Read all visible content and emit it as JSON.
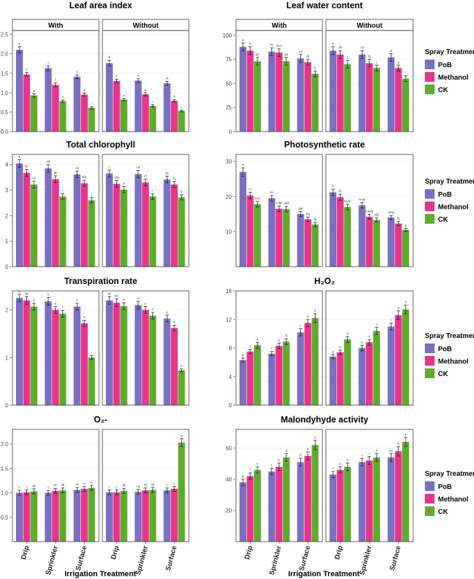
{
  "chart_data": [
    {
      "type": "bar",
      "title": "Leaf area index",
      "facets": [
        "With",
        "Without"
      ],
      "categories": [
        "Drip",
        "Sprinkler",
        "Surface"
      ],
      "ylim": [
        0,
        2.6
      ],
      "yticks": [
        0,
        0.5,
        1,
        1.5,
        2,
        2.5
      ],
      "ytick_labels": [
        "0.0",
        "0.5",
        "1.0",
        "1.5",
        "2.0",
        "2.5"
      ],
      "series": [
        {
          "name": "PoB",
          "values": [
            [
              2.1,
              1.63,
              1.41
            ],
            [
              1.76,
              1.31,
              1.24
            ]
          ],
          "errors": [
            [
              0.08,
              0.06,
              0.05
            ],
            [
              0.07,
              0.05,
              0.05
            ]
          ],
          "letters": [
            [
              "a",
              "c",
              "d"
            ],
            [
              "b",
              "e",
              "ef"
            ]
          ]
        },
        {
          "name": "Methanol",
          "values": [
            [
              1.47,
              1.2,
              0.95
            ],
            [
              1.3,
              0.96,
              0.79
            ]
          ],
          "errors": [
            [
              0.05,
              0.05,
              0.04
            ],
            [
              0.05,
              0.04,
              0.03
            ]
          ],
          "letters": [
            [
              "e",
              "f",
              "g"
            ],
            [
              "e",
              "g",
              "h"
            ]
          ]
        },
        {
          "name": "CK",
          "values": [
            [
              0.93,
              0.78,
              0.61
            ],
            [
              0.82,
              0.66,
              0.53
            ]
          ],
          "errors": [
            [
              0.04,
              0.03,
              0.03
            ],
            [
              0.03,
              0.03,
              0.02
            ]
          ],
          "letters": [
            [
              "g",
              "h",
              "i"
            ],
            [
              "h",
              "i",
              "j"
            ]
          ]
        }
      ]
    },
    {
      "type": "bar",
      "title": "Leaf water content",
      "facets": [
        "With",
        "Without"
      ],
      "categories": [
        "Drip",
        "Sprinkler",
        "Surface"
      ],
      "ylim": [
        0,
        105
      ],
      "yticks": [
        0,
        25,
        50,
        75,
        100
      ],
      "ytick_labels": [
        "0",
        "25",
        "50",
        "75",
        "100"
      ],
      "series": [
        {
          "name": "PoB",
          "values": [
            [
              88,
              83,
              76
            ],
            [
              84,
              80,
              77
            ]
          ],
          "errors": [
            [
              4,
              4,
              4
            ],
            [
              4,
              4,
              4
            ]
          ],
          "letters": [
            [
              "a",
              "bc",
              "cd"
            ],
            [
              "b",
              "cd",
              "d"
            ]
          ]
        },
        {
          "name": "Methanol",
          "values": [
            [
              84,
              82,
              72
            ],
            [
              80,
              71,
              66
            ]
          ],
          "errors": [
            [
              4,
              4,
              3
            ],
            [
              4,
              4,
              3
            ]
          ],
          "letters": [
            [
              "b",
              "bcd",
              "de"
            ],
            [
              "de",
              "fg",
              "g"
            ]
          ]
        },
        {
          "name": "CK",
          "values": [
            [
              73,
              73,
              60
            ],
            [
              70,
              66,
              55
            ]
          ],
          "errors": [
            [
              4,
              4,
              3
            ],
            [
              4,
              3,
              3
            ]
          ],
          "letters": [
            [
              "gh",
              "gh",
              "k"
            ],
            [
              "ij",
              "j",
              "l"
            ]
          ]
        }
      ]
    },
    {
      "type": "bar",
      "title": "Total chlorophyll",
      "facets": [
        "With",
        "Without"
      ],
      "categories": [
        "Drip",
        "Sprinkler",
        "Surface"
      ],
      "ylim": [
        0,
        4.4
      ],
      "yticks": [
        0,
        1,
        2,
        3,
        4
      ],
      "ytick_labels": [
        "0",
        "1",
        "2",
        "3",
        "4"
      ],
      "series": [
        {
          "name": "PoB",
          "values": [
            [
              4.05,
              3.85,
              3.62
            ],
            [
              3.65,
              3.63,
              3.42
            ]
          ],
          "errors": [
            [
              0.15,
              0.15,
              0.13
            ],
            [
              0.14,
              0.14,
              0.13
            ]
          ],
          "letters": [
            [
              "a",
              "ab",
              "cd"
            ],
            [
              "c",
              "cd",
              "de"
            ]
          ]
        },
        {
          "name": "Methanol",
          "values": [
            [
              3.68,
              3.43,
              3.27
            ],
            [
              3.25,
              3.3,
              3.22
            ]
          ],
          "errors": [
            [
              0.14,
              0.13,
              0.12
            ],
            [
              0.13,
              0.13,
              0.12
            ]
          ],
          "letters": [
            [
              "bc",
              "de",
              "efg"
            ],
            [
              "efg",
              "ef",
              "fg"
            ]
          ]
        },
        {
          "name": "CK",
          "values": [
            [
              3.22,
              2.75,
              2.6
            ],
            [
              3.02,
              2.75,
              2.72
            ]
          ],
          "errors": [
            [
              0.13,
              0.11,
              0.1
            ],
            [
              0.12,
              0.11,
              0.1
            ]
          ],
          "letters": [
            [
              "cd",
              "i",
              "j"
            ],
            [
              "h",
              "i",
              "ij"
            ]
          ]
        }
      ]
    },
    {
      "type": "bar",
      "title": "Photosynthetic rate",
      "facets": [
        "With",
        "Without"
      ],
      "categories": [
        "Drip",
        "Sprinkler",
        "Surface"
      ],
      "ylim": [
        0,
        32
      ],
      "yticks": [
        10,
        20,
        30
      ],
      "ytick_labels": [
        "10",
        "20",
        "30"
      ],
      "series": [
        {
          "name": "PoB",
          "values": [
            [
              27,
              19.5,
              15
            ],
            [
              21.2,
              17.5,
              14
            ]
          ],
          "errors": [
            [
              1.2,
              0.8,
              0.7
            ],
            [
              0.9,
              0.8,
              0.6
            ]
          ],
          "letters": [
            [
              "a",
              "bc",
              "def"
            ],
            [
              "b",
              "bcde",
              "defg"
            ]
          ]
        },
        {
          "name": "Methanol",
          "values": [
            [
              20.3,
              16.5,
              13.5
            ],
            [
              19.8,
              14.2,
              12.3
            ]
          ],
          "errors": [
            [
              0.9,
              0.8,
              0.6
            ],
            [
              0.9,
              0.7,
              0.6
            ]
          ],
          "letters": [
            [
              "cc",
              "cdef",
              "efg"
            ],
            [
              "bc",
              "cdefg",
              "fg"
            ]
          ]
        },
        {
          "name": "CK",
          "values": [
            [
              17.8,
              16.4,
              12
            ],
            [
              17,
              13.3,
              10.5
            ]
          ],
          "errors": [
            [
              0.8,
              0.8,
              0.6
            ],
            [
              0.8,
              0.6,
              0.5
            ]
          ],
          "letters": [
            [
              "bcd",
              "cdef",
              "fg"
            ],
            [
              "bcde",
              "efg",
              "g"
            ]
          ]
        }
      ]
    },
    {
      "type": "bar",
      "title": "Transpiration rate",
      "facets": [
        "With",
        "Without"
      ],
      "categories": [
        "Drip",
        "Sprinkler",
        "Surface"
      ],
      "ylim": [
        0,
        2.4
      ],
      "yticks": [
        0,
        1,
        2
      ],
      "ytick_labels": [
        "0",
        "1",
        "2"
      ],
      "series": [
        {
          "name": "PoB",
          "values": [
            [
              2.25,
              2.18,
              2.07
            ],
            [
              2.2,
              2.1,
              1.82
            ]
          ],
          "errors": [
            [
              0.08,
              0.08,
              0.07
            ],
            [
              0.08,
              0.08,
              0.07
            ]
          ],
          "letters": [
            [
              "a",
              "b",
              "e"
            ],
            [
              "ab",
              "cc",
              "g"
            ]
          ]
        },
        {
          "name": "Methanol",
          "values": [
            [
              2.2,
              2.0,
              1.72
            ],
            [
              2.15,
              2.0,
              1.62
            ]
          ],
          "errors": [
            [
              0.08,
              0.07,
              0.06
            ],
            [
              0.08,
              0.07,
              0.06
            ]
          ],
          "letters": [
            [
              "ab",
              "e",
              "h"
            ],
            [
              "bc",
              "e",
              "h"
            ]
          ]
        },
        {
          "name": "CK",
          "values": [
            [
              2.07,
              1.92,
              1.0
            ],
            [
              2.08,
              1.88,
              0.73
            ]
          ],
          "errors": [
            [
              0.07,
              0.07,
              0.04
            ],
            [
              0.07,
              0.07,
              0.03
            ]
          ],
          "letters": [
            [
              "e",
              "f",
              "i"
            ],
            [
              "e",
              "f",
              "k"
            ]
          ]
        }
      ]
    },
    {
      "type": "bar",
      "title": "H₂O₂",
      "facets": [
        "With",
        "Without"
      ],
      "categories": [
        "Drip",
        "Sprinkler",
        "Surface"
      ],
      "ylim": [
        0,
        16
      ],
      "yticks": [
        0,
        4,
        8,
        12,
        16
      ],
      "ytick_labels": [
        "0",
        "4",
        "8",
        "12",
        "16"
      ],
      "series": [
        {
          "name": "PoB",
          "values": [
            [
              6.3,
              7.2,
              10.2
            ],
            [
              6.8,
              8.0,
              11.0
            ]
          ],
          "errors": [
            [
              0.3,
              0.3,
              0.5
            ],
            [
              0.3,
              0.4,
              0.5
            ]
          ],
          "letters": [
            [
              "g",
              "f",
              "c"
            ],
            [
              "g",
              "e",
              "c"
            ]
          ]
        },
        {
          "name": "Methanol",
          "values": [
            [
              7.5,
              8.3,
              11.5
            ],
            [
              7.4,
              8.8,
              12.6
            ]
          ],
          "errors": [
            [
              0.3,
              0.4,
              0.5
            ],
            [
              0.3,
              0.4,
              0.6
            ]
          ],
          "letters": [
            [
              "e",
              "e",
              "b"
            ],
            [
              "e",
              "e",
              "a"
            ]
          ]
        },
        {
          "name": "CK",
          "values": [
            [
              8.4,
              8.9,
              12.2
            ],
            [
              9.2,
              10.4,
              13.4
            ]
          ],
          "errors": [
            [
              0.4,
              0.4,
              0.6
            ],
            [
              0.4,
              0.5,
              0.6
            ]
          ],
          "letters": [
            [
              "d",
              "d",
              "b"
            ],
            [
              "d",
              "c",
              "a"
            ]
          ]
        }
      ]
    },
    {
      "type": "bar",
      "title": "O₂-",
      "facets": [
        "With",
        "Without"
      ],
      "categories": [
        "Drip",
        "Sprinkler",
        "Surface"
      ],
      "ylim": [
        0,
        2.3
      ],
      "yticks": [
        0.5,
        1,
        1.5,
        2
      ],
      "ytick_labels": [
        "0.5",
        "1.0",
        "1.5",
        "2.0"
      ],
      "series": [
        {
          "name": "PoB",
          "values": [
            [
              1.0,
              1.0,
              1.06
            ],
            [
              1.01,
              1.02,
              1.05
            ]
          ],
          "errors": [
            [
              0.05,
              0.05,
              0.05
            ],
            [
              0.05,
              0.05,
              0.05
            ]
          ],
          "letters": [
            [
              "c",
              "c",
              "ef"
            ],
            [
              "c",
              "cg",
              "c"
            ]
          ]
        },
        {
          "name": "Methanol",
          "values": [
            [
              1.01,
              1.04,
              1.08
            ],
            [
              1.01,
              1.05,
              1.08
            ]
          ],
          "errors": [
            [
              0.05,
              0.05,
              0.05
            ],
            [
              0.05,
              0.05,
              0.05
            ]
          ],
          "letters": [
            [
              "c",
              "bc",
              "cc"
            ],
            [
              "c",
              "ef",
              "c"
            ]
          ]
        },
        {
          "name": "CK",
          "values": [
            [
              1.03,
              1.05,
              1.1
            ],
            [
              1.04,
              1.06,
              2.03
            ]
          ],
          "errors": [
            [
              0.05,
              0.05,
              0.05
            ],
            [
              0.05,
              0.05,
              0.08
            ]
          ],
          "letters": [
            [
              "ab",
              "ab",
              "b"
            ],
            [
              "ab",
              "ab",
              "a"
            ]
          ]
        }
      ]
    },
    {
      "type": "bar",
      "title": "Malondyhyde activity",
      "facets": [
        "With",
        "Without"
      ],
      "categories": [
        "Drip",
        "Sprinkler",
        "Surface"
      ],
      "ylim": [
        0,
        72
      ],
      "yticks": [
        20,
        40,
        60
      ],
      "ytick_labels": [
        "20",
        "40",
        "60"
      ],
      "series": [
        {
          "name": "PoB",
          "values": [
            [
              38,
              45,
              51
            ],
            [
              43,
              51,
              54
            ]
          ],
          "errors": [
            [
              2,
              2,
              2.5
            ],
            [
              2,
              2.5,
              2.5
            ]
          ],
          "letters": [
            [
              "g",
              "f",
              "b"
            ],
            [
              "f",
              "c",
              "bc"
            ]
          ]
        },
        {
          "name": "Methanol",
          "values": [
            [
              42,
              48,
              55
            ],
            [
              46,
              52,
              58
            ]
          ],
          "errors": [
            [
              2,
              2.5,
              2.5
            ],
            [
              2,
              2.5,
              3
            ]
          ],
          "letters": [
            [
              "f",
              "e",
              "b"
            ],
            [
              "e",
              "c",
              "b"
            ]
          ]
        },
        {
          "name": "CK",
          "values": [
            [
              46,
              54,
              62
            ],
            [
              48,
              54,
              64
            ]
          ],
          "errors": [
            [
              2,
              2.5,
              3
            ],
            [
              2.5,
              2.5,
              3
            ]
          ],
          "letters": [
            [
              "e",
              "d",
              "a"
            ],
            [
              "d",
              "d",
              "a"
            ]
          ]
        }
      ]
    }
  ],
  "legend": {
    "title": "Spray Treatment",
    "entries": [
      "PoB",
      "Methanol",
      "CK"
    ],
    "colors": [
      "#7b6fc2",
      "#e8358b",
      "#5fab2c"
    ]
  },
  "xlabel": "Irrigation Treatment"
}
